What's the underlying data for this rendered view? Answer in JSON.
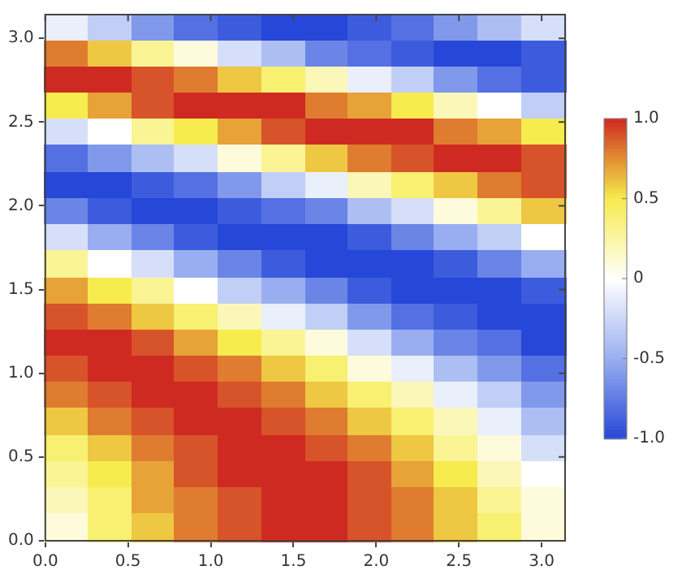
{
  "chart_data": {
    "type": "heatmap",
    "x": [
      0.131,
      0.393,
      0.654,
      0.916,
      1.178,
      1.44,
      1.702,
      1.963,
      2.225,
      2.487,
      2.749,
      3.011
    ],
    "y": [
      3.063,
      2.906,
      2.749,
      2.592,
      2.435,
      2.278,
      2.121,
      1.963,
      1.806,
      1.649,
      1.492,
      1.335,
      1.178,
      1.021,
      0.864,
      0.707,
      0.55,
      0.393,
      0.236,
      0.079
    ],
    "cells": [
      [
        -0.1,
        -0.3,
        -0.6,
        -0.8,
        -0.9,
        -1.0,
        -1.0,
        -0.9,
        -0.8,
        -0.6,
        -0.4,
        -0.2
      ],
      [
        0.8,
        0.6,
        0.3,
        0.1,
        -0.2,
        -0.4,
        -0.7,
        -0.8,
        -0.9,
        -1.0,
        -1.0,
        -0.9
      ],
      [
        1.0,
        1.0,
        0.9,
        0.8,
        0.6,
        0.4,
        0.2,
        -0.1,
        -0.3,
        -0.6,
        -0.8,
        -0.9
      ],
      [
        0.5,
        0.7,
        0.9,
        1.0,
        1.0,
        1.0,
        0.8,
        0.7,
        0.5,
        0.2,
        0,
        -0.3
      ],
      [
        -0.2,
        0,
        0.3,
        0.5,
        0.7,
        0.9,
        1.0,
        1.0,
        1.0,
        0.8,
        0.7,
        0.5
      ],
      [
        -0.8,
        -0.6,
        -0.4,
        -0.2,
        0.1,
        0.3,
        0.6,
        0.8,
        0.9,
        1.0,
        1.0,
        0.9
      ],
      [
        -1.0,
        -1.0,
        -0.9,
        -0.8,
        -0.6,
        -0.3,
        -0.1,
        0.2,
        0.4,
        0.6,
        0.8,
        0.9
      ],
      [
        -0.7,
        -0.9,
        -1.0,
        -1.0,
        -0.9,
        -0.8,
        -0.7,
        -0.4,
        -0.2,
        0.1,
        0.3,
        0.6
      ],
      [
        -0.2,
        -0.5,
        -0.7,
        -0.9,
        -1.0,
        -1.0,
        -1.0,
        -0.9,
        -0.7,
        -0.5,
        -0.3,
        0
      ],
      [
        0.3,
        0,
        -0.2,
        -0.5,
        -0.7,
        -0.9,
        -1.0,
        -1.0,
        -1.0,
        -0.9,
        -0.7,
        -0.5
      ],
      [
        0.7,
        0.5,
        0.3,
        0,
        -0.3,
        -0.5,
        -0.7,
        -0.9,
        -1.0,
        -1.0,
        -1.0,
        -0.9
      ],
      [
        0.9,
        0.8,
        0.6,
        0.4,
        0.2,
        -0.1,
        -0.3,
        -0.6,
        -0.8,
        -0.9,
        -1.0,
        -1.0
      ],
      [
        1.0,
        1.0,
        0.9,
        0.7,
        0.5,
        0.3,
        0.1,
        -0.2,
        -0.5,
        -0.7,
        -0.8,
        -1.0
      ],
      [
        0.9,
        1.0,
        1.0,
        0.9,
        0.8,
        0.6,
        0.4,
        0.1,
        -0.1,
        -0.4,
        -0.6,
        -0.8
      ],
      [
        0.8,
        0.9,
        1.0,
        1.0,
        0.9,
        0.8,
        0.6,
        0.4,
        0.2,
        -0.1,
        -0.3,
        -0.6
      ],
      [
        0.6,
        0.8,
        0.9,
        1.0,
        1.0,
        0.9,
        0.8,
        0.6,
        0.4,
        0.2,
        -0.1,
        -0.4
      ],
      [
        0.4,
        0.6,
        0.8,
        0.9,
        1.0,
        1.0,
        0.9,
        0.8,
        0.6,
        0.3,
        0.1,
        -0.2
      ],
      [
        0.3,
        0.5,
        0.7,
        0.9,
        1.0,
        1.0,
        1.0,
        0.9,
        0.7,
        0.5,
        0.2,
        0
      ],
      [
        0.2,
        0.4,
        0.7,
        0.8,
        0.9,
        1.0,
        1.0,
        0.9,
        0.8,
        0.6,
        0.3,
        0.1
      ],
      [
        0.1,
        0.4,
        0.6,
        0.8,
        0.9,
        1.0,
        1.0,
        0.9,
        0.8,
        0.6,
        0.4,
        0.1
      ]
    ],
    "xlim": [
      0,
      3.1416
    ],
    "ylim": [
      0,
      3.1416
    ],
    "xticks": [
      {
        "value": 0,
        "label": "0.0"
      },
      {
        "value": 0.5,
        "label": "0.5"
      },
      {
        "value": 1,
        "label": "1.0"
      },
      {
        "value": 1.5,
        "label": "1.5"
      },
      {
        "value": 2,
        "label": "2.0"
      },
      {
        "value": 2.5,
        "label": "2.5"
      },
      {
        "value": 3,
        "label": "3.0"
      }
    ],
    "yticks": [
      {
        "value": 0,
        "label": "0.0"
      },
      {
        "value": 0.5,
        "label": "0.5"
      },
      {
        "value": 1,
        "label": "1.0"
      },
      {
        "value": 1.5,
        "label": "1.5"
      },
      {
        "value": 2,
        "label": "2.0"
      },
      {
        "value": 2.5,
        "label": "2.5"
      },
      {
        "value": 3,
        "label": "3.0"
      }
    ],
    "clim": [
      -1,
      1
    ],
    "cticks": [
      {
        "value": 1,
        "label": "1.0"
      },
      {
        "value": 0.5,
        "label": "0.5"
      },
      0,
      {
        "value": -0.5,
        "label": "-0.5"
      },
      {
        "value": -1,
        "label": "-1.0"
      }
    ]
  }
}
